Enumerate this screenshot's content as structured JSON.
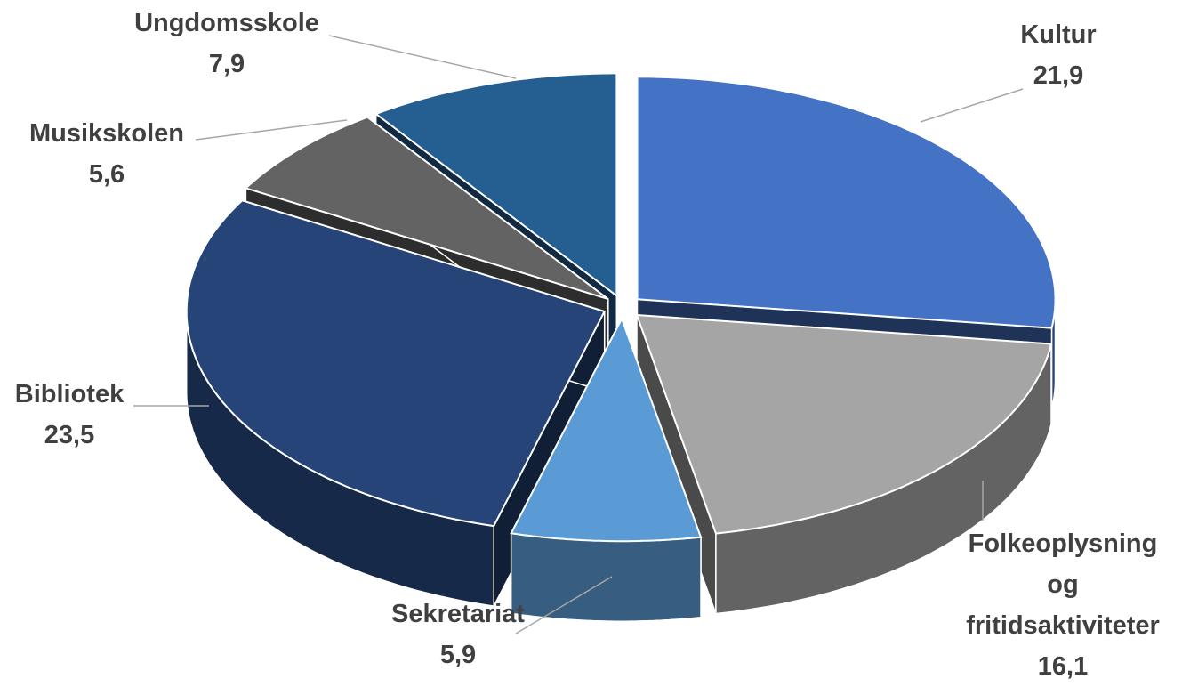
{
  "chart_data": {
    "type": "pie3d",
    "categories": [
      "Kultur",
      "Folkeoplysning og fritidsaktiviteter",
      "Sekretariat",
      "Bibliotek",
      "Musikskolen",
      "Ungdomsskole"
    ],
    "values": [
      21.9,
      16.1,
      5.9,
      23.5,
      5.6,
      7.9
    ],
    "value_labels": [
      "21,9",
      "16,1",
      "5,9",
      "23,5",
      "5,6",
      "7,9"
    ],
    "colors": [
      "#4472c4",
      "#a5a5a5",
      "#5b9bd5",
      "#264478",
      "#636363",
      "#255e91"
    ]
  }
}
